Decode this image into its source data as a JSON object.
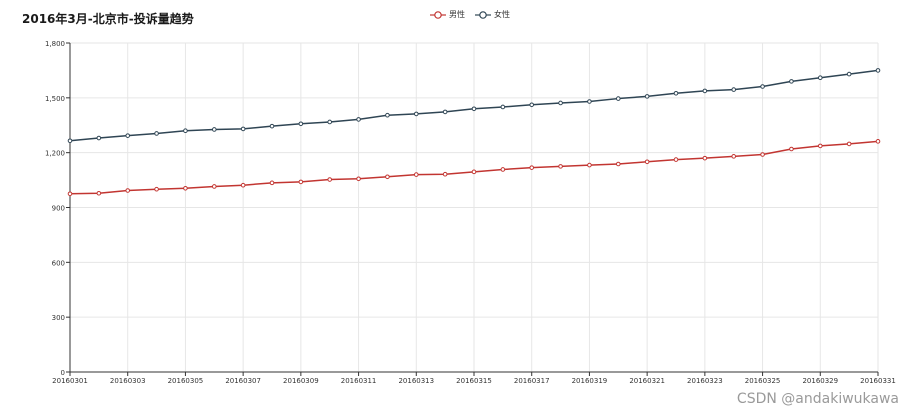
{
  "colors": {
    "male": "#c23531",
    "female": "#2f4554",
    "grid": "#e6e6e6",
    "axis": "#333333"
  },
  "watermark": "CSDN @andakiwukawa",
  "chart_data": {
    "type": "line",
    "title": "2016年3月-北京市-投诉量趋势",
    "legend_position": "top-center",
    "grid": true,
    "ylim": [
      0,
      1800
    ],
    "yticks": [
      0,
      300,
      600,
      900,
      1200,
      1500,
      1800
    ],
    "ytick_labels": [
      "0",
      "300",
      "600",
      "900",
      "1,200",
      "1,500",
      "1,800"
    ],
    "x": [
      "20160301",
      "20160302",
      "20160303",
      "20160304",
      "20160305",
      "20160306",
      "20160307",
      "20160308",
      "20160309",
      "20160310",
      "20160311",
      "20160312",
      "20160313",
      "20160314",
      "20160315",
      "20160316",
      "20160317",
      "20160318",
      "20160319",
      "20160320",
      "20160321",
      "20160322",
      "20160323",
      "20160324",
      "20160325",
      "20160326",
      "20160329",
      "20160330",
      "20160331"
    ],
    "xtick_labels": [
      "20160301",
      "20160303",
      "20160305",
      "20160307",
      "20160309",
      "20160311",
      "20160313",
      "20160315",
      "20160317",
      "20160319",
      "20160321",
      "20160323",
      "20160325",
      "20160329",
      "20160331"
    ],
    "series": [
      {
        "name": "男性",
        "color_key": "male",
        "values": [
          975,
          978,
          993,
          1000,
          1005,
          1015,
          1022,
          1035,
          1040,
          1053,
          1057,
          1068,
          1080,
          1082,
          1095,
          1108,
          1118,
          1125,
          1132,
          1138,
          1150,
          1162,
          1170,
          1180,
          1190,
          1220,
          1237,
          1248,
          1262
        ]
      },
      {
        "name": "女性",
        "color_key": "female",
        "values": [
          1265,
          1280,
          1293,
          1305,
          1320,
          1327,
          1330,
          1345,
          1358,
          1368,
          1382,
          1405,
          1412,
          1423,
          1440,
          1450,
          1462,
          1472,
          1480,
          1496,
          1508,
          1525,
          1538,
          1545,
          1562,
          1590,
          1610,
          1630,
          1650
        ]
      }
    ]
  }
}
